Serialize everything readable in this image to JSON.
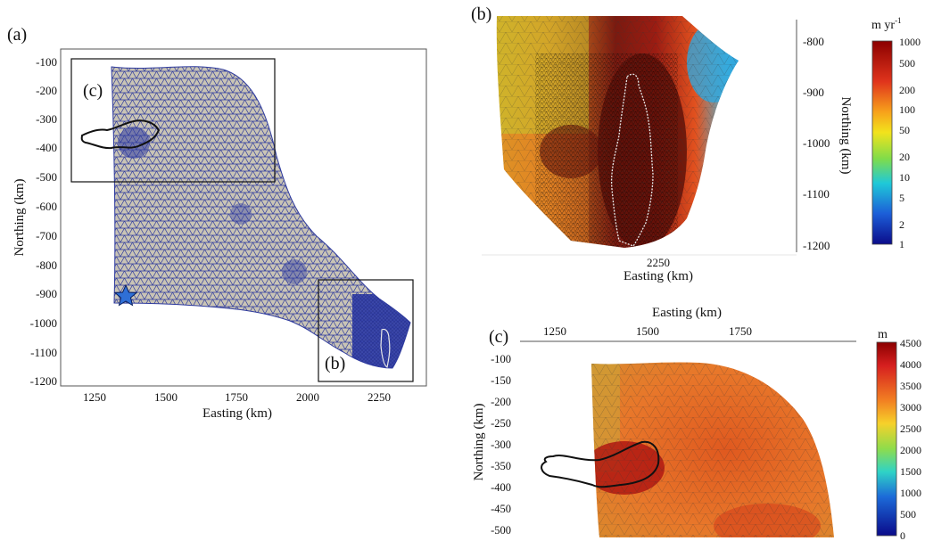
{
  "panels": {
    "a": {
      "label": "(a)",
      "xlabel": "Easting (km)",
      "ylabel": "Northing (km)",
      "xticks": [
        "1250",
        "1500",
        "1750",
        "2000",
        "2250"
      ],
      "yticks": [
        "-100",
        "-200",
        "-300",
        "-400",
        "-500",
        "-600",
        "-700",
        "-800",
        "-900",
        "-1000",
        "-1100",
        "-1200"
      ],
      "inset_b_label": "(b)",
      "inset_c_label": "(c)",
      "mesh_color": "#2f3b9e",
      "marker": "star"
    },
    "b": {
      "label": "(b)",
      "xlabel": "Easting (km)",
      "ylabel": "Northing (km)",
      "xticks": [
        "2250"
      ],
      "yticks": [
        "-800",
        "-900",
        "-1000",
        "-1100",
        "-1200"
      ],
      "colorbar_title": "m yr",
      "colorbar_exp": "-1",
      "colorbar_ticks": [
        "1000",
        "500",
        "200",
        "100",
        "50",
        "20",
        "10",
        "5",
        "2",
        "1"
      ],
      "colorbar_scale": "log"
    },
    "c": {
      "label": "(c)",
      "xlabel": "Easting (km)",
      "ylabel": "Northing (km)",
      "xticks": [
        "1250",
        "1500",
        "1750"
      ],
      "yticks": [
        "-100",
        "-150",
        "-200",
        "-250",
        "-300",
        "-350",
        "-400",
        "-450",
        "-500"
      ],
      "colorbar_title": "m",
      "colorbar_ticks": [
        "4500",
        "4000",
        "3500",
        "3000",
        "2500",
        "2000",
        "1500",
        "1000",
        "500",
        "0"
      ],
      "colorbar_scale": "linear"
    }
  },
  "colors": {
    "star": "#2f6fd6",
    "outline_black": "#111111",
    "outline_white": "#e8e8e8"
  }
}
